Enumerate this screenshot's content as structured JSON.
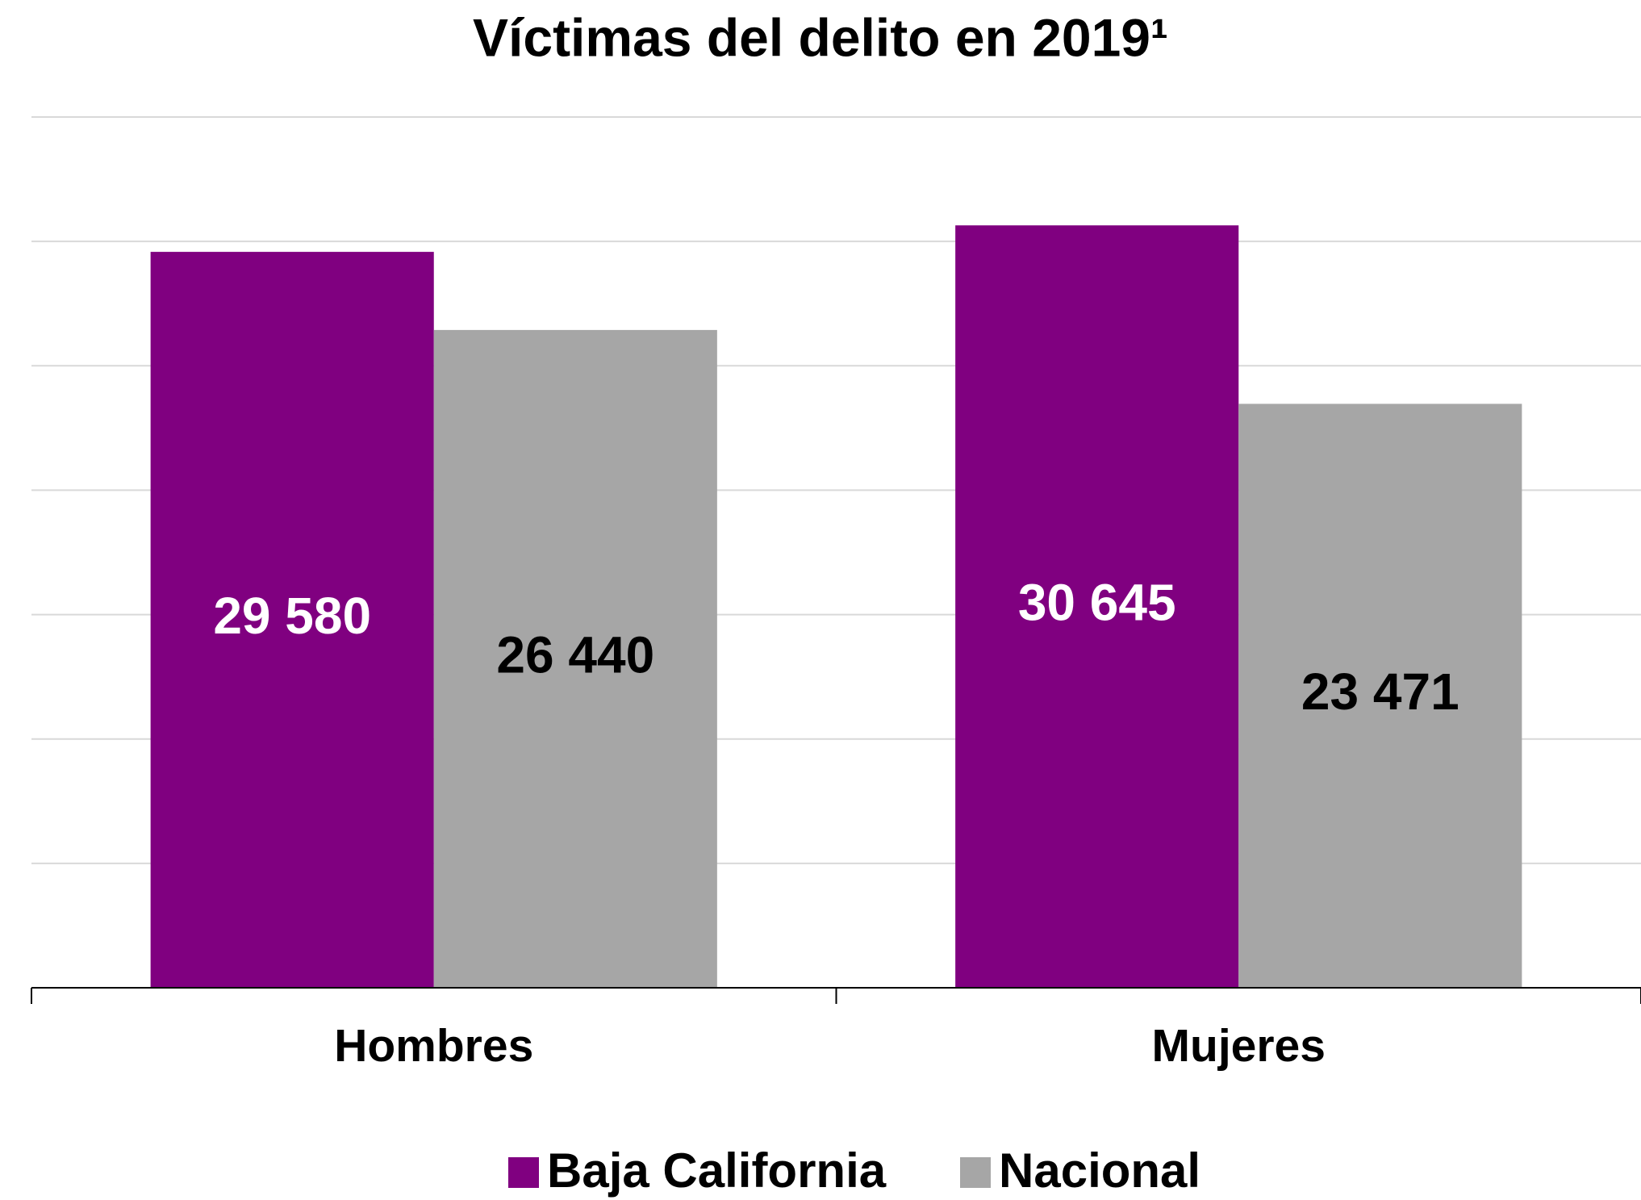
{
  "chart_data": {
    "type": "bar",
    "title": "Víctimas del delito en 2019¹",
    "categories": [
      "Hombres",
      "Mujeres"
    ],
    "series": [
      {
        "name": "Baja California",
        "color": "#800080",
        "values": [
          29580,
          30645
        ],
        "value_labels": [
          "29 580",
          "30 645"
        ],
        "label_color": "#ffffff"
      },
      {
        "name": "Nacional",
        "color": "#a6a6a6",
        "values": [
          26440,
          23471
        ],
        "value_labels": [
          "26 440",
          "23 471"
        ],
        "label_color": "#000000"
      }
    ],
    "ylim": [
      0,
      35000
    ],
    "yticks": [
      0,
      5000,
      10000,
      15000,
      20000,
      25000,
      30000,
      35000
    ],
    "grid": true,
    "legend": "bottom"
  }
}
